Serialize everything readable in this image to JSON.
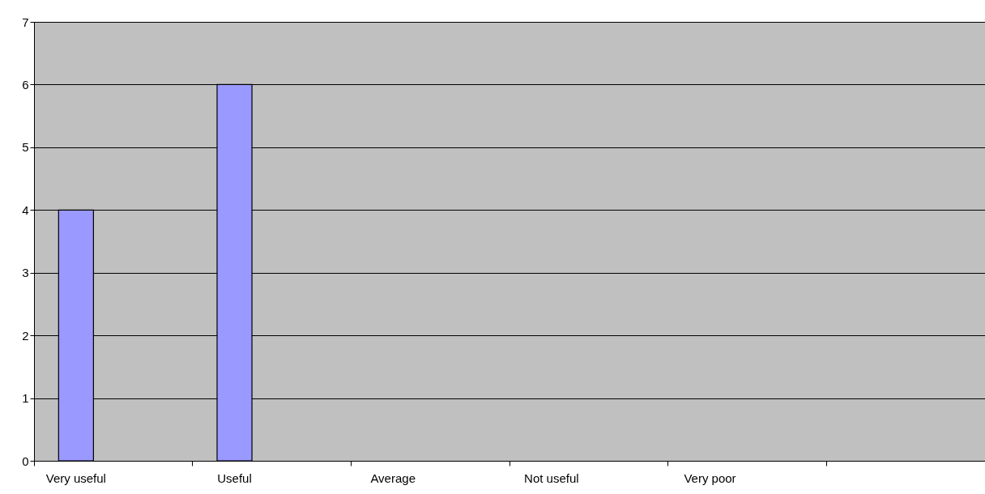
{
  "chart_data": {
    "type": "bar",
    "categories": [
      "Very useful",
      "Useful",
      "Average",
      "Not useful",
      "Very poor",
      null
    ],
    "series": [
      {
        "color": "#9999ff",
        "values": [
          4,
          6,
          null,
          null,
          null,
          null
        ]
      }
    ],
    "ylim": [
      0,
      7
    ],
    "yticks": [
      0,
      1,
      2,
      3,
      4,
      5,
      6,
      7
    ],
    "grid": "y"
  }
}
